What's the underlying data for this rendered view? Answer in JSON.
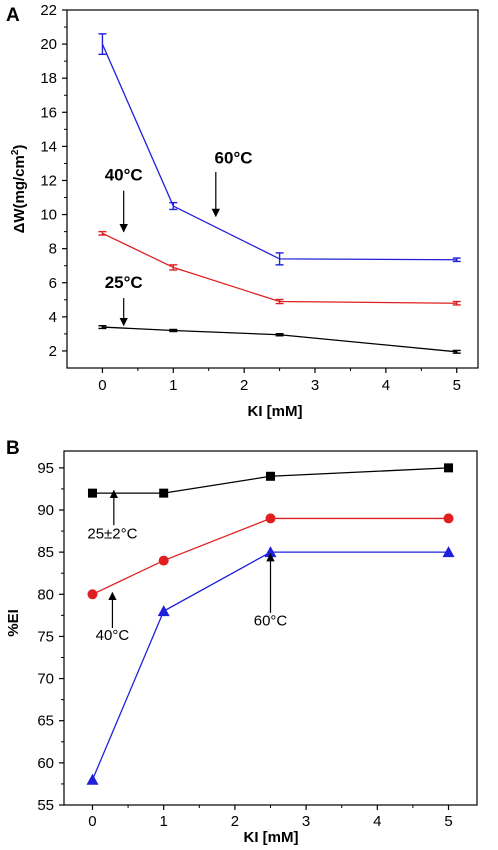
{
  "chart_data": [
    {
      "type": "line",
      "panel_label": "A",
      "xlabel": "KI [mM]",
      "ylabel_main": "ΔW(mg/cm",
      "ylabel_sup": "2",
      "ylabel_end": ")",
      "xlim": [
        -0.5,
        5.3
      ],
      "ylim": [
        1,
        22
      ],
      "x_ticks": [
        0,
        1,
        2,
        3,
        4,
        5
      ],
      "y_ticks": [
        2,
        4,
        6,
        8,
        10,
        12,
        14,
        16,
        18,
        20,
        22
      ],
      "error_bars": true,
      "series": [
        {
          "name": "60°C",
          "color": "#1f1fdc",
          "x": [
            0,
            1,
            2.5,
            5
          ],
          "y": [
            20.0,
            10.5,
            7.4,
            7.35
          ],
          "err": [
            0.6,
            0.2,
            0.35,
            0.1
          ]
        },
        {
          "name": "40°C",
          "color": "#e02020",
          "x": [
            0,
            1,
            2.5,
            5
          ],
          "y": [
            8.9,
            6.9,
            4.9,
            4.8
          ],
          "err": [
            0.1,
            0.15,
            0.12,
            0.1
          ]
        },
        {
          "name": "25°C",
          "color": "#000000",
          "x": [
            0,
            1,
            2.5,
            5
          ],
          "y": [
            3.4,
            3.2,
            2.95,
            1.95
          ],
          "err": [
            0.08,
            0.06,
            0.06,
            0.08
          ]
        }
      ],
      "annotations": [
        {
          "text": "60°C",
          "text_x": 1.85,
          "text_y": 13.0,
          "arrow_from": [
            1.6,
            12.5
          ],
          "arrow_to": [
            1.6,
            9.9
          ]
        },
        {
          "text": "40°C",
          "text_x": 0.3,
          "text_y": 12.0,
          "arrow_from": [
            0.3,
            11.4
          ],
          "arrow_to": [
            0.3,
            9.0
          ]
        },
        {
          "text": "25°C",
          "text_x": 0.3,
          "text_y": 5.7,
          "arrow_from": [
            0.3,
            5.1
          ],
          "arrow_to": [
            0.3,
            3.5
          ]
        }
      ]
    },
    {
      "type": "line",
      "panel_label": "B",
      "xlabel": "KI [mM]",
      "ylabel": "%EI",
      "xlim": [
        -0.4,
        5.4
      ],
      "ylim": [
        55,
        97
      ],
      "x_ticks": [
        0,
        1,
        2,
        3,
        4,
        5
      ],
      "y_ticks": [
        55,
        60,
        65,
        70,
        75,
        80,
        85,
        90,
        95
      ],
      "series": [
        {
          "name": "25±2°C",
          "color": "#000000",
          "marker": "square",
          "x": [
            0,
            1,
            2.5,
            5
          ],
          "y": [
            92,
            92,
            94,
            95
          ]
        },
        {
          "name": "40°C",
          "color": "#e02020",
          "marker": "circle",
          "x": [
            0,
            1,
            2.5,
            5
          ],
          "y": [
            80,
            84,
            89,
            89
          ]
        },
        {
          "name": "60°C",
          "color": "#1f1fdc",
          "marker": "triangle",
          "x": [
            0,
            1,
            2.5,
            5
          ],
          "y": [
            58,
            78,
            85,
            85
          ]
        }
      ],
      "annotations": [
        {
          "text": "25±2°C",
          "text_x": 0.28,
          "text_y": 86.6,
          "arrow_from": [
            0.3,
            88.2
          ],
          "arrow_to": [
            0.3,
            92.3
          ]
        },
        {
          "text": "40°C",
          "text_x": 0.28,
          "text_y": 74.6,
          "arrow_from": [
            0.28,
            76.0
          ],
          "arrow_to": [
            0.28,
            80.2
          ]
        },
        {
          "text": "60°C",
          "text_x": 2.5,
          "text_y": 76.3,
          "arrow_from": [
            2.5,
            77.8
          ],
          "arrow_to": [
            2.5,
            84.8
          ]
        }
      ]
    }
  ]
}
